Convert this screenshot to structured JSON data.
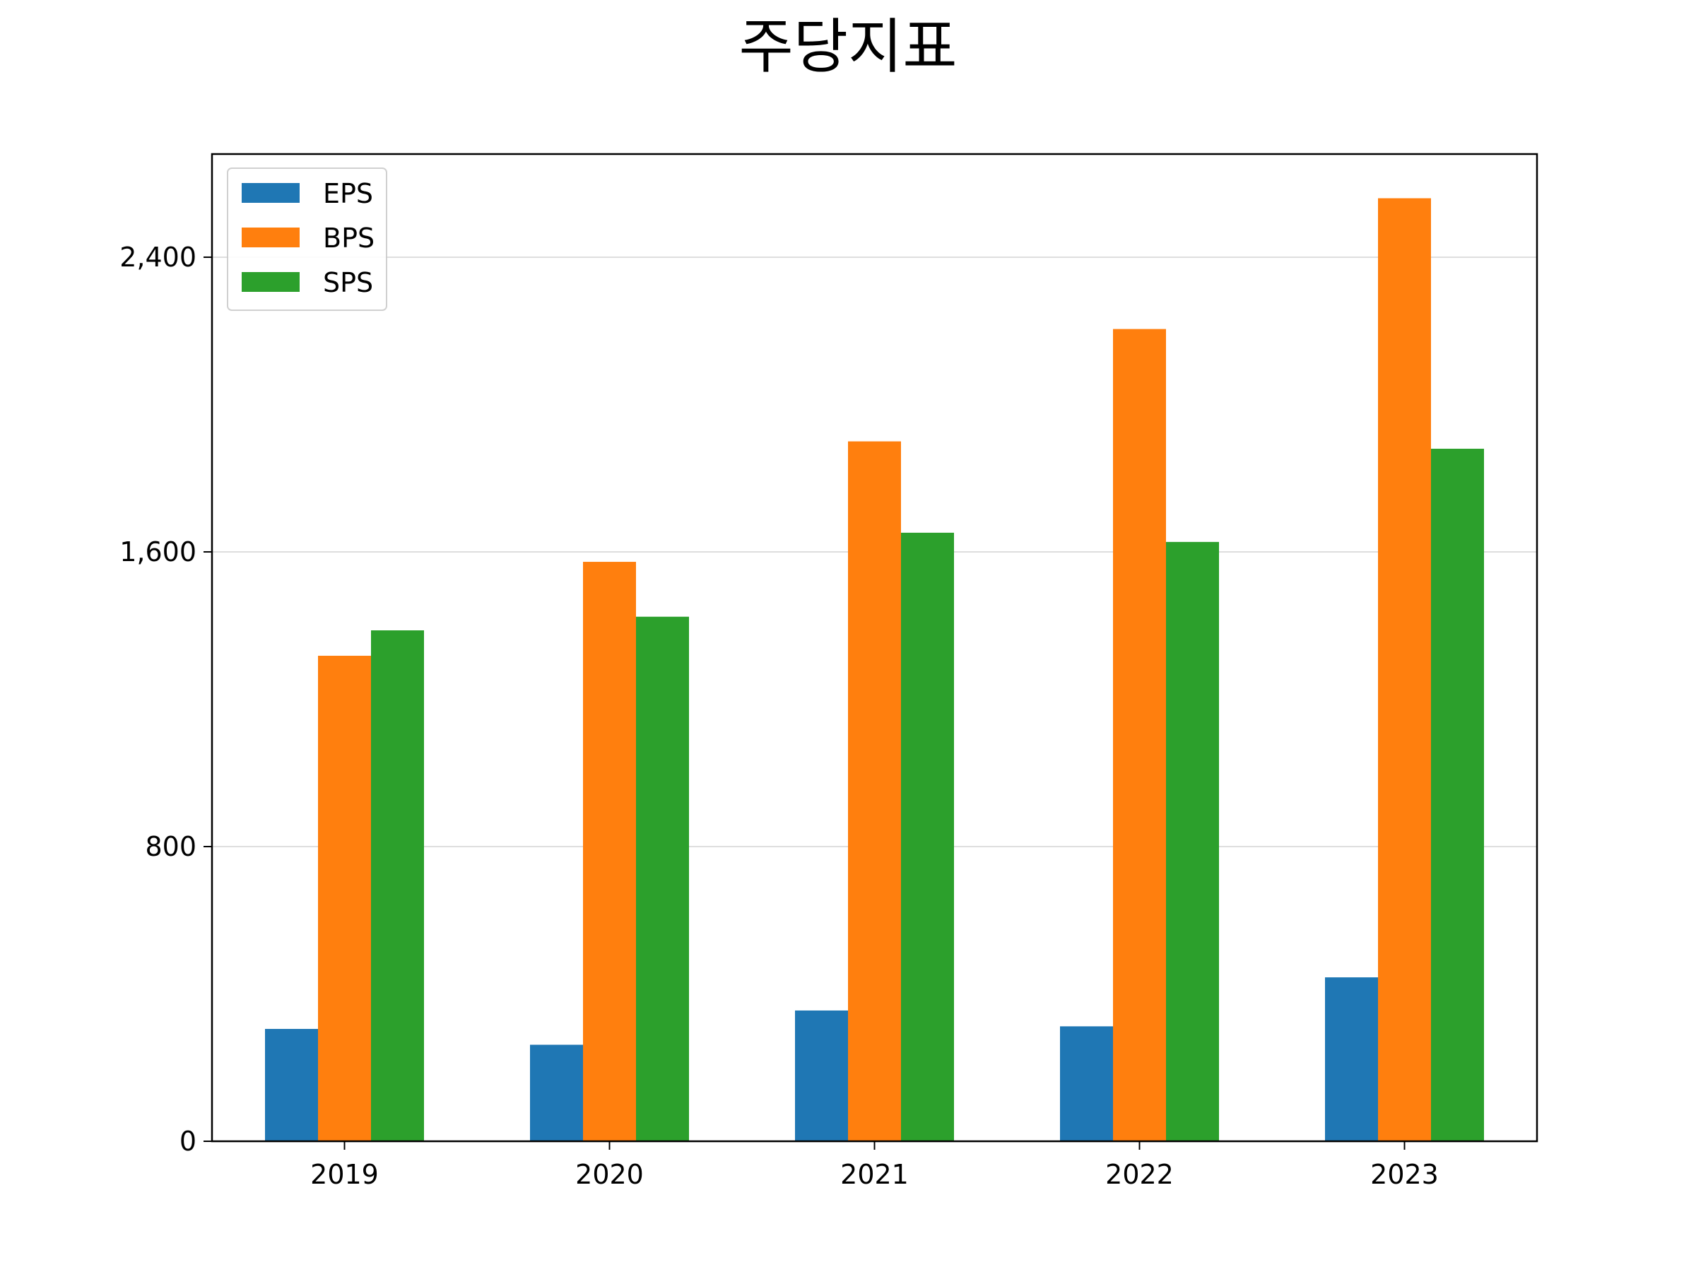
{
  "chart_data": {
    "type": "bar",
    "title": "주당지표",
    "xlabel": "",
    "ylabel": "",
    "categories": [
      "2019",
      "2020",
      "2021",
      "2022",
      "2023"
    ],
    "series": [
      {
        "name": "EPS",
        "color": "#1f77b4",
        "values": [
          305,
          262,
          355,
          312,
          445
        ]
      },
      {
        "name": "BPS",
        "color": "#ff7f0e",
        "values": [
          1318,
          1573,
          1900,
          2205,
          2560
        ]
      },
      {
        "name": "SPS",
        "color": "#2ca02c",
        "values": [
          1387,
          1424,
          1652,
          1627,
          1880
        ]
      }
    ],
    "ylim": [
      0,
      2680
    ],
    "yticks": [
      0,
      800,
      1600,
      2400
    ],
    "ytick_labels": [
      "0",
      "800",
      "1,600",
      "2,400"
    ],
    "grid": "y",
    "legend_position": "top-left"
  }
}
